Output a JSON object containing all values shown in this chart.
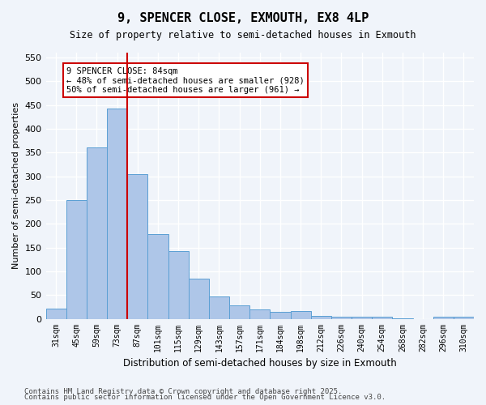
{
  "title": "9, SPENCER CLOSE, EXMOUTH, EX8 4LP",
  "subtitle": "Size of property relative to semi-detached houses in Exmouth",
  "xlabel": "Distribution of semi-detached houses by size in Exmouth",
  "ylabel": "Number of semi-detached properties",
  "categories": [
    "31sqm",
    "45sqm",
    "59sqm",
    "73sqm",
    "87sqm",
    "101sqm",
    "115sqm",
    "129sqm",
    "143sqm",
    "157sqm",
    "171sqm",
    "184sqm",
    "198sqm",
    "212sqm",
    "226sqm",
    "240sqm",
    "254sqm",
    "268sqm",
    "282sqm",
    "296sqm",
    "310sqm"
  ],
  "values": [
    22,
    250,
    360,
    443,
    305,
    178,
    143,
    85,
    47,
    28,
    20,
    15,
    16,
    6,
    5,
    5,
    4,
    1,
    0,
    5,
    5
  ],
  "bar_color": "#aec6e8",
  "bar_edge_color": "#5a9fd4",
  "vline_x": 4,
  "vline_color": "#cc0000",
  "annotation_title": "9 SPENCER CLOSE: 84sqm",
  "annotation_line1": "← 48% of semi-detached houses are smaller (928)",
  "annotation_line2": "50% of semi-detached houses are larger (961) →",
  "annotation_box_color": "#ffffff",
  "annotation_box_edge": "#cc0000",
  "ylim": [
    0,
    560
  ],
  "yticks": [
    0,
    50,
    100,
    150,
    200,
    250,
    300,
    350,
    400,
    450,
    500,
    550
  ],
  "bg_color": "#f0f4fa",
  "grid_color": "#ffffff",
  "footnote1": "Contains HM Land Registry data © Crown copyright and database right 2025.",
  "footnote2": "Contains public sector information licensed under the Open Government Licence v3.0."
}
